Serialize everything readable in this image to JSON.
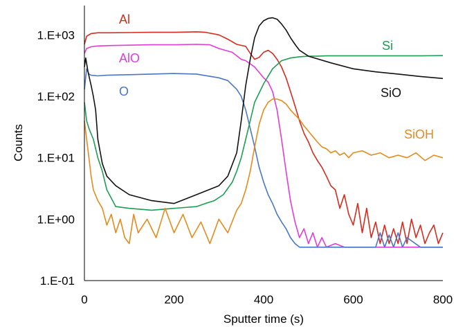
{
  "chart_data": {
    "type": "line",
    "title": "",
    "xlabel": "Sputter time (s)",
    "ylabel": "Counts",
    "xlim": [
      0,
      800
    ],
    "ylim": [
      0.1,
      3000
    ],
    "yscale": "log",
    "grid": false,
    "legend": "none",
    "x_ticks": [
      0,
      200,
      400,
      600,
      800
    ],
    "x_tick_labels": [
      "0",
      "200",
      "400",
      "600",
      "800"
    ],
    "y_ticks": [
      0.1,
      1,
      10,
      100,
      1000
    ],
    "y_tick_labels": [
      "1.E-01",
      "1.E+00",
      "1.E+01",
      "1.E+02",
      "1.E+03"
    ],
    "series": [
      {
        "name": "Al",
        "color": "#d62a1e",
        "x": [
          0,
          5,
          15,
          30,
          60,
          100,
          150,
          200,
          250,
          270,
          300,
          320,
          340,
          360,
          370,
          380,
          390,
          400,
          410,
          420,
          430,
          440,
          450,
          460,
          470,
          480,
          490,
          500,
          510,
          520,
          530,
          540,
          550,
          560,
          570,
          580,
          590,
          600,
          610,
          620,
          630,
          640,
          650,
          660,
          670,
          680,
          690,
          700,
          710,
          720,
          730,
          740,
          750,
          760,
          770,
          780,
          790,
          800
        ],
        "y": [
          700,
          950,
          1050,
          1080,
          1080,
          1090,
          1100,
          1100,
          1120,
          1100,
          1000,
          850,
          700,
          650,
          500,
          400,
          430,
          520,
          560,
          500,
          400,
          300,
          200,
          120,
          70,
          40,
          25,
          18,
          12,
          9,
          7,
          5,
          3.5,
          3,
          1.5,
          2.5,
          1.2,
          0.8,
          1.8,
          0.6,
          1.5,
          0.5,
          0.9,
          0.4,
          0.8,
          0.4,
          0.7,
          0.4,
          0.9,
          0.4,
          1.0,
          0.5,
          0.8,
          0.4,
          0.6,
          0.8,
          0.4,
          0.6
        ]
      },
      {
        "name": "AlO",
        "color": "#e33bd8",
        "x": [
          0,
          5,
          15,
          30,
          60,
          100,
          150,
          200,
          250,
          280,
          300,
          330,
          350,
          360,
          380,
          400,
          410,
          420,
          430,
          440,
          450,
          460,
          470,
          480,
          490,
          500,
          510,
          520,
          530,
          540,
          560,
          580,
          600,
          650,
          700,
          750,
          800
        ],
        "y": [
          500,
          600,
          640,
          660,
          670,
          680,
          690,
          690,
          700,
          690,
          600,
          520,
          400,
          380,
          300,
          200,
          170,
          120,
          60,
          20,
          6,
          2,
          0.9,
          0.5,
          0.7,
          0.4,
          0.6,
          0.35,
          0.5,
          0.35,
          0.4,
          0.35,
          0.35,
          0.35,
          0.35,
          0.35,
          0.35
        ]
      },
      {
        "name": "O",
        "color": "#4a76c4",
        "x": [
          0,
          5,
          10,
          15,
          30,
          50,
          100,
          150,
          200,
          250,
          300,
          320,
          340,
          350,
          360,
          370,
          380,
          390,
          400,
          410,
          420,
          430,
          440,
          450,
          460,
          470,
          480,
          500,
          550,
          600,
          650,
          660,
          670,
          680,
          690,
          700,
          710,
          720,
          750,
          800
        ],
        "y": [
          130,
          280,
          230,
          220,
          215,
          220,
          225,
          230,
          235,
          230,
          200,
          180,
          130,
          100,
          60,
          30,
          15,
          7,
          4,
          2.5,
          1.8,
          1.2,
          0.9,
          0.7,
          0.5,
          0.4,
          0.35,
          0.35,
          0.35,
          0.35,
          0.35,
          0.6,
          0.35,
          0.55,
          0.35,
          0.6,
          0.35,
          0.5,
          0.35,
          0.35
        ]
      },
      {
        "name": "Si",
        "color": "#1c9e52",
        "x": [
          0,
          5,
          10,
          20,
          30,
          40,
          50,
          70,
          100,
          150,
          200,
          250,
          270,
          290,
          310,
          330,
          340,
          350,
          360,
          370,
          380,
          400,
          420,
          440,
          460,
          480,
          500,
          520,
          540,
          560,
          600,
          650,
          700,
          750,
          800
        ],
        "y": [
          80,
          40,
          30,
          20,
          10,
          6,
          3,
          1.6,
          1.5,
          1.4,
          1.5,
          1.6,
          1.8,
          2,
          2.5,
          4,
          6,
          10,
          20,
          40,
          80,
          160,
          280,
          380,
          420,
          440,
          450,
          450,
          455,
          455,
          455,
          455,
          455,
          455,
          460
        ]
      },
      {
        "name": "SiO",
        "color": "#111111",
        "x": [
          0,
          3,
          8,
          15,
          20,
          25,
          30,
          40,
          50,
          70,
          100,
          150,
          200,
          250,
          300,
          320,
          340,
          350,
          360,
          370,
          380,
          390,
          400,
          410,
          420,
          430,
          440,
          450,
          460,
          470,
          480,
          500,
          550,
          600,
          650,
          700,
          750,
          800
        ],
        "y": [
          300,
          420,
          250,
          150,
          100,
          60,
          20,
          8,
          5,
          3.5,
          2.5,
          2,
          1.8,
          2.5,
          3.5,
          5,
          12,
          40,
          150,
          400,
          900,
          1400,
          1700,
          1850,
          1900,
          1800,
          1500,
          1200,
          900,
          700,
          560,
          450,
          350,
          280,
          250,
          230,
          210,
          195
        ]
      },
      {
        "name": "SiOH",
        "color": "#e58a1c",
        "x": [
          0,
          5,
          10,
          15,
          20,
          30,
          40,
          50,
          60,
          70,
          80,
          90,
          100,
          110,
          120,
          140,
          160,
          180,
          200,
          220,
          240,
          260,
          280,
          300,
          320,
          340,
          350,
          360,
          370,
          380,
          390,
          400,
          410,
          420,
          430,
          440,
          450,
          460,
          470,
          480,
          490,
          500,
          510,
          520,
          530,
          540,
          550,
          560,
          570,
          580,
          590,
          600,
          620,
          640,
          660,
          680,
          700,
          720,
          740,
          760,
          780,
          800
        ],
        "y": [
          40,
          20,
          10,
          5,
          3,
          2,
          1.5,
          0.8,
          1.2,
          0.6,
          1.0,
          0.5,
          0.4,
          1.2,
          0.6,
          1.0,
          0.5,
          1.5,
          0.6,
          1.2,
          0.5,
          0.9,
          0.4,
          1.0,
          0.6,
          1.4,
          1.8,
          3,
          6,
          15,
          35,
          60,
          80,
          90,
          90,
          85,
          75,
          60,
          50,
          42,
          33,
          27,
          22,
          18,
          15,
          14,
          12,
          13,
          11,
          12,
          10,
          12,
          13,
          11,
          12,
          10,
          11,
          10,
          12,
          9,
          11,
          10
        ]
      }
    ],
    "series_labels": [
      {
        "text": "Al",
        "color": "#d62a1e"
      },
      {
        "text": "AlO",
        "color": "#e33bd8"
      },
      {
        "text": "O",
        "color": "#4a76c4"
      },
      {
        "text": "Si",
        "color": "#1c9e52"
      },
      {
        "text": "SiO",
        "color": "#111111"
      },
      {
        "text": "SiOH",
        "color": "#e58a1c"
      }
    ]
  }
}
